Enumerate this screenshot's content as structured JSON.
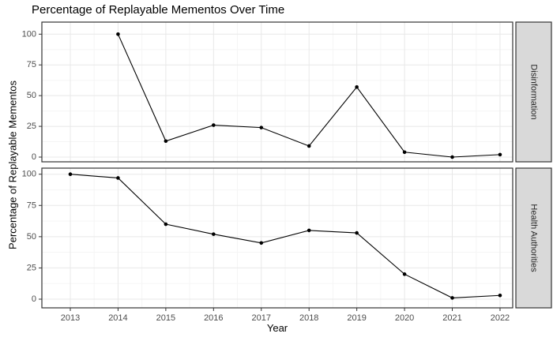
{
  "chart_data": {
    "type": "line",
    "title": "Percentage of Replayable Mementos Over Time",
    "xlabel": "Year",
    "ylabel": "Percentage of Replayable Mementos",
    "x_ticks": [
      2013,
      2014,
      2015,
      2016,
      2017,
      2018,
      2019,
      2020,
      2021,
      2022
    ],
    "y_ticks": [
      0,
      25,
      50,
      75,
      100
    ],
    "ylim": [
      0,
      100
    ],
    "grid": true,
    "legend_position": "none",
    "facet_side": "right",
    "facets": [
      {
        "label": "Disinformation",
        "x": [
          2014,
          2015,
          2016,
          2017,
          2018,
          2019,
          2020,
          2021,
          2022
        ],
        "values": [
          100,
          13,
          26,
          24,
          9,
          57,
          4,
          0,
          2
        ]
      },
      {
        "label": "Health Authorities",
        "x": [
          2013,
          2014,
          2015,
          2016,
          2017,
          2018,
          2019,
          2020,
          2021,
          2022
        ],
        "values": [
          100,
          97,
          60,
          52,
          45,
          55,
          53,
          20,
          1,
          3
        ]
      }
    ],
    "colors": {
      "line": "#000000",
      "point": "#000000",
      "panel_bg": "#ffffff",
      "panel_border": "#333333",
      "grid_major": "#E8E8E8",
      "grid_minor": "#F5F5F5",
      "strip_fill": "#D9D9D9",
      "strip_border": "#333333",
      "strip_text": "#262626",
      "tick_mark": "#333333",
      "tick_text": "#4D4D4D"
    }
  }
}
